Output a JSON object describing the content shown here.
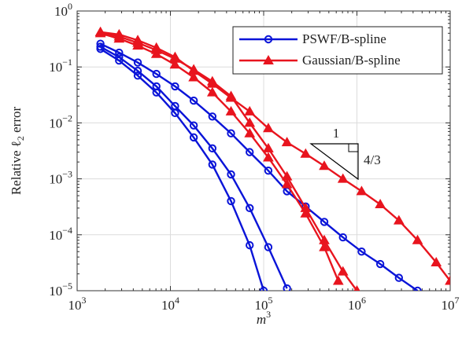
{
  "chart_data": {
    "type": "line",
    "log_x": true,
    "log_y": true,
    "grid": true,
    "legend": "upper right",
    "xlabel": {
      "main": "m",
      "sup": "3"
    },
    "ylabel": {
      "main": "Relative ℓ",
      "sub": "2",
      "tail": " error"
    },
    "xlim": [
      1000,
      10000000
    ],
    "ylim": [
      1e-05,
      1
    ],
    "xticks": [
      {
        "value": 1000,
        "label": {
          "base": "10",
          "exp": "3"
        }
      },
      {
        "value": 10000,
        "label": {
          "base": "10",
          "exp": "4"
        }
      },
      {
        "value": 100000,
        "label": {
          "base": "10",
          "exp": "5"
        }
      },
      {
        "value": 1000000,
        "label": {
          "base": "10",
          "exp": "6"
        }
      },
      {
        "value": 10000000,
        "label": {
          "base": "10",
          "exp": "7"
        }
      }
    ],
    "yticks": [
      {
        "value": 1e-05,
        "label": {
          "base": "10",
          "exp": "−5"
        }
      },
      {
        "value": 0.0001,
        "label": {
          "base": "10",
          "exp": "−4"
        }
      },
      {
        "value": 0.001,
        "label": {
          "base": "10",
          "exp": "−3"
        }
      },
      {
        "value": 0.01,
        "label": {
          "base": "10",
          "exp": "−2"
        }
      },
      {
        "value": 0.1,
        "label": {
          "base": "10",
          "exp": "−1"
        }
      },
      {
        "value": 1,
        "label": {
          "base": "10",
          "exp": "0"
        }
      }
    ],
    "slope_triangle": {
      "run": "1",
      "rise": "4/3"
    },
    "series": [
      {
        "name": "PSWF/B-spline",
        "color": "#0a14d8",
        "marker": "circle",
        "curves": [
          {
            "x": [
              1778,
              2818,
              4467,
              7079,
              11220,
              17783,
              28184,
              44668,
              70795,
              100000
            ],
            "values": [
              0.21,
              0.13,
              0.07,
              0.035,
              0.015,
              0.0055,
              0.0018,
              0.0004,
              6.5e-05,
              1e-05
            ]
          },
          {
            "x": [
              1778,
              2818,
              4467,
              7079,
              11220,
              17783,
              28184,
              44668,
              70795,
              112202,
              177828
            ],
            "values": [
              0.23,
              0.15,
              0.085,
              0.045,
              0.02,
              0.009,
              0.0035,
              0.0012,
              0.0003,
              6e-05,
              1.1e-05
            ]
          },
          {
            "x": [
              1778,
              2818,
              4467,
              7079,
              11220,
              17783,
              28184,
              44668,
              70795,
              112202,
              177828,
              281838,
              446684,
              707946,
              1122018,
              1778279,
              2818383,
              4466836
            ],
            "values": [
              0.26,
              0.18,
              0.12,
              0.075,
              0.045,
              0.025,
              0.013,
              0.0065,
              0.003,
              0.0014,
              0.0006,
              0.00032,
              0.00017,
              9e-05,
              5e-05,
              3e-05,
              1.7e-05,
              1e-05
            ]
          }
        ]
      },
      {
        "name": "Gaussian/B-spline",
        "color": "#e8141e",
        "marker": "triangle",
        "curves": [
          {
            "x": [
              1778,
              2818,
              4467,
              7079,
              11220,
              17783,
              28184,
              44668,
              70795,
              112202,
              177828,
              281838,
              446684,
              630957
            ],
            "values": [
              0.4,
              0.32,
              0.24,
              0.17,
              0.11,
              0.065,
              0.035,
              0.016,
              0.0065,
              0.0024,
              0.0008,
              0.00024,
              6e-05,
              1.5e-05
            ]
          },
          {
            "x": [
              1778,
              2818,
              4467,
              7079,
              11220,
              17783,
              28184,
              44668,
              70795,
              112202,
              177828,
              281838,
              446684,
              707946,
              1000000
            ],
            "values": [
              0.42,
              0.35,
              0.27,
              0.2,
              0.14,
              0.09,
              0.055,
              0.03,
              0.01,
              0.0035,
              0.0011,
              0.0003,
              8e-05,
              2.2e-05,
              1e-05
            ]
          },
          {
            "x": [
              1778,
              2818,
              4467,
              7079,
              11220,
              17783,
              28184,
              44668,
              70795,
              112202,
              177828,
              281838,
              446684,
              707946,
              1122018,
              1778279,
              2818383,
              4466836,
              7079458,
              10000000
            ],
            "values": [
              0.42,
              0.38,
              0.3,
              0.22,
              0.15,
              0.085,
              0.05,
              0.028,
              0.016,
              0.008,
              0.0045,
              0.0028,
              0.0017,
              0.001,
              0.0006,
              0.00035,
              0.00018,
              8e-05,
              3.2e-05,
              1.5e-05
            ]
          }
        ]
      }
    ]
  }
}
